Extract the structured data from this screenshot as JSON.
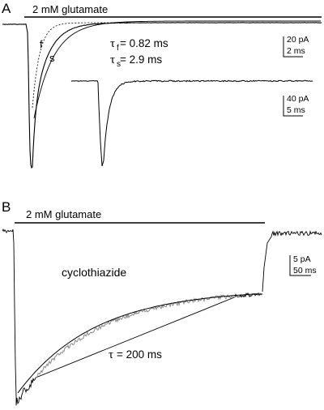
{
  "panel_a": {
    "letter": "A",
    "condition": "2 mM glutamate",
    "fit_fast_label": "f",
    "fit_slow_label": "s",
    "tau_symbol": "τ",
    "tau_f_sub": "f",
    "tau_f_text": " = 0.82 ms",
    "tau_s_sub": "s",
    "tau_s_text": " = 2.9 ms",
    "scale_main": {
      "current": "20 pA",
      "time": "2 ms"
    },
    "scale_inset": {
      "current": "40 pA",
      "time": "5 ms"
    }
  },
  "panel_b": {
    "letter": "B",
    "condition": "2 mM glutamate",
    "drug": "cyclothiazide",
    "tau_symbol": "τ",
    "tau_text": " = 200 ms",
    "scale": {
      "current": "5 pA",
      "time": "50 ms"
    }
  },
  "chart_data": [
    {
      "type": "line",
      "panel": "A",
      "title": "",
      "xlabel": "",
      "ylabel": "",
      "grid": false,
      "series": [
        {
          "name": "",
          "style": "solid",
          "description_values": {
            "tau_ms": [
              0.82,
              2.9
            ]
          }
        },
        {
          "name": "f",
          "style": "dashed",
          "tau_ms": 0.82
        },
        {
          "name": "s",
          "style": "solid-fit",
          "tau_ms": 2.9
        }
      ],
      "annotations": [
        "τf = 0.82 ms",
        "τs = 2.9 ms"
      ],
      "scale_bars": [
        {
          "current_pA": 20,
          "time_ms": 2
        },
        {
          "current_pA": 40,
          "time_ms": 5
        }
      ]
    },
    {
      "type": "line",
      "panel": "B",
      "title": "",
      "xlabel": "",
      "ylabel": "",
      "grid": false,
      "series": [
        {
          "name": "",
          "style": "noisy-trace"
        },
        {
          "name": "",
          "style": "fit",
          "tau_ms": 200
        }
      ],
      "annotations": [
        "cyclothiazide",
        "τ = 200 ms"
      ],
      "scale_bars": [
        {
          "current_pA": 5,
          "time_ms": 50
        }
      ]
    }
  ]
}
